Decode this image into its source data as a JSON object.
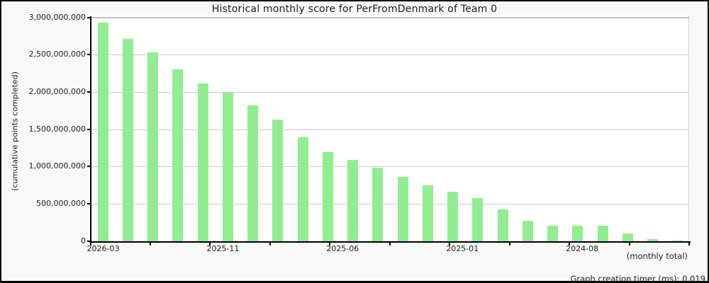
{
  "title": "Historical monthly score for PerFromDenmark of Team 0",
  "footer": {
    "timer_label": "Graph creation timer (ms): 0.019"
  },
  "chart_data": {
    "type": "bar",
    "title": "Historical monthly score for PerFromDenmark of Team 0",
    "ylabel": "(cumulative points completed)",
    "xlabel": "(monthly total)",
    "ylim": [
      0,
      3000000000
    ],
    "y_tick_interval": 500000000,
    "y_tick_labels": [
      "3,000,000,000",
      "2,500,000,000",
      "2,000,000,000",
      "1,500,000,000",
      "1,000,000,000",
      "500,000,000",
      "0"
    ],
    "x_tick_labels": [
      "2026-03",
      "2025-11",
      "2025-06",
      "2025-01",
      "2024-08"
    ],
    "x_tick_label_indices": [
      0,
      2,
      4,
      6,
      8
    ],
    "num_x_ticks": 11,
    "grid": true,
    "legend": false,
    "bar_color": "#90EE90",
    "values": [
      2935000000,
      2718000000,
      2535000000,
      2304000000,
      2120000000,
      1994000000,
      1821000000,
      1631000000,
      1398000000,
      1193000000,
      1090000000,
      984000000,
      863000000,
      749000000,
      663000000,
      578000000,
      423000000,
      276000000,
      207000000,
      207000000,
      207000000,
      103000000,
      25000000,
      11000000
    ]
  },
  "colors": {
    "background": "#f8f8f8",
    "plot_background": "#ffffff",
    "grid": "#c9c9c9",
    "axis": "#000000",
    "bar": "#90EE90",
    "text": "#1c1c1c"
  }
}
